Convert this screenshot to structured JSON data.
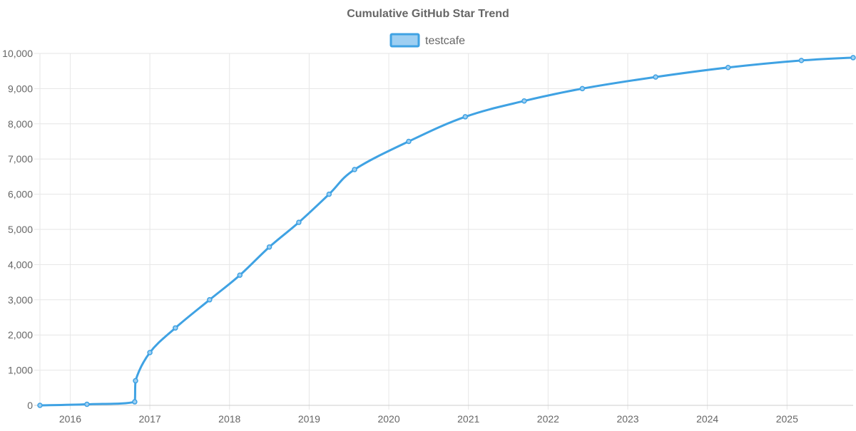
{
  "chart_data": {
    "type": "line",
    "title": "Cumulative GitHub Star Trend",
    "xlabel": "",
    "ylabel": "",
    "legend": {
      "position": "top-center",
      "entries": [
        {
          "name": "testcafe"
        }
      ]
    },
    "grid": true,
    "colors": {
      "line": "#3fa2e3",
      "legend_fill": "#9ecff2",
      "grid": "#e6e6e6",
      "text": "#666666"
    },
    "x_range": [
      2015.62,
      2025.83
    ],
    "y_range": [
      0,
      10000
    ],
    "x_ticks": [
      {
        "value": 2016,
        "label": "2016"
      },
      {
        "value": 2017,
        "label": "2017"
      },
      {
        "value": 2018,
        "label": "2018"
      },
      {
        "value": 2019,
        "label": "2019"
      },
      {
        "value": 2020,
        "label": "2020"
      },
      {
        "value": 2021,
        "label": "2021"
      },
      {
        "value": 2022,
        "label": "2022"
      },
      {
        "value": 2023,
        "label": "2023"
      },
      {
        "value": 2024,
        "label": "2024"
      },
      {
        "value": 2025,
        "label": "2025"
      }
    ],
    "y_ticks": [
      {
        "value": 0,
        "label": "0"
      },
      {
        "value": 1000,
        "label": "1,000"
      },
      {
        "value": 2000,
        "label": "2,000"
      },
      {
        "value": 3000,
        "label": "3,000"
      },
      {
        "value": 4000,
        "label": "4,000"
      },
      {
        "value": 5000,
        "label": "5,000"
      },
      {
        "value": 6000,
        "label": "6,000"
      },
      {
        "value": 7000,
        "label": "7,000"
      },
      {
        "value": 8000,
        "label": "8,000"
      },
      {
        "value": 9000,
        "label": "9,000"
      },
      {
        "value": 10000,
        "label": "10,000"
      }
    ],
    "series": [
      {
        "name": "testcafe",
        "points": [
          {
            "x": 2015.62,
            "y": 0
          },
          {
            "x": 2016.21,
            "y": 30
          },
          {
            "x": 2016.81,
            "y": 100
          },
          {
            "x": 2016.82,
            "y": 700
          },
          {
            "x": 2017.0,
            "y": 1500
          },
          {
            "x": 2017.32,
            "y": 2200
          },
          {
            "x": 2017.75,
            "y": 3000
          },
          {
            "x": 2018.13,
            "y": 3700
          },
          {
            "x": 2018.5,
            "y": 4500
          },
          {
            "x": 2018.87,
            "y": 5200
          },
          {
            "x": 2019.25,
            "y": 6000
          },
          {
            "x": 2019.57,
            "y": 6700
          },
          {
            "x": 2020.25,
            "y": 7500
          },
          {
            "x": 2020.96,
            "y": 8200
          },
          {
            "x": 2021.7,
            "y": 8650
          },
          {
            "x": 2022.43,
            "y": 9000
          },
          {
            "x": 2023.35,
            "y": 9330
          },
          {
            "x": 2024.26,
            "y": 9600
          },
          {
            "x": 2025.18,
            "y": 9800
          },
          {
            "x": 2025.83,
            "y": 9880
          }
        ]
      }
    ]
  }
}
